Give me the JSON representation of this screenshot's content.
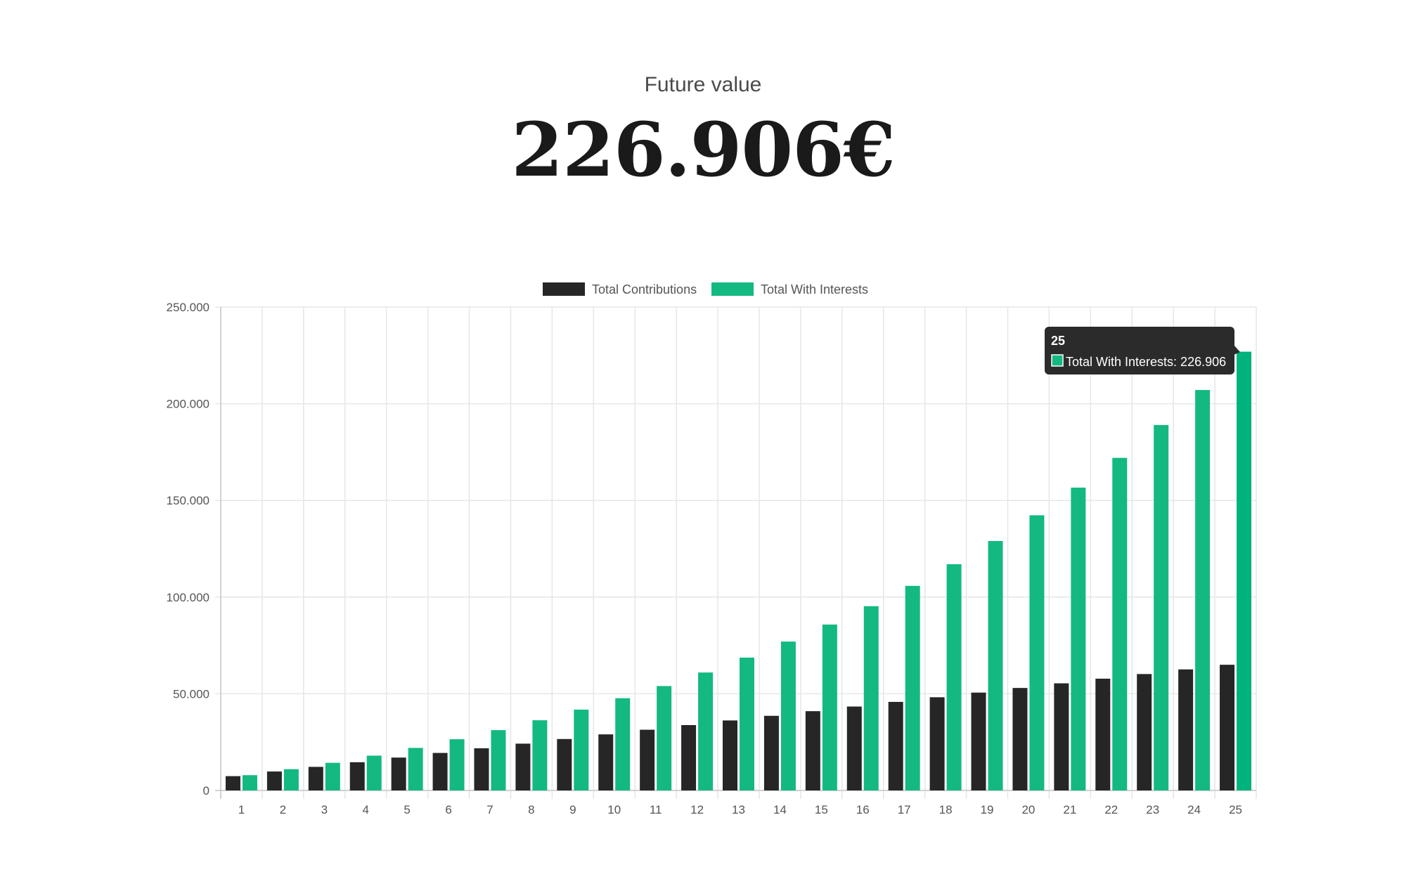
{
  "summary": {
    "label": "Future value",
    "value": "226.906€"
  },
  "colors": {
    "contributions": "#262626",
    "interests": "#13b981",
    "interests_active": "#00b27b",
    "grid": "#e6e6e6",
    "tooltip_bg": "#2b2b2b"
  },
  "tooltip": {
    "title": "25",
    "text": "Total With Interests: 226.906"
  },
  "chart_data": {
    "type": "bar",
    "title": "",
    "xlabel": "",
    "ylabel": "",
    "ylim": [
      0,
      250000
    ],
    "yticks": [
      0,
      50000,
      100000,
      150000,
      200000,
      250000
    ],
    "ytick_labels": [
      "0",
      "50.000",
      "100.000",
      "150.000",
      "200.000",
      "250.000"
    ],
    "grid": true,
    "legend": "top-center",
    "categories": [
      "1",
      "2",
      "3",
      "4",
      "5",
      "6",
      "7",
      "8",
      "9",
      "10",
      "11",
      "12",
      "13",
      "14",
      "15",
      "16",
      "17",
      "18",
      "19",
      "20",
      "21",
      "22",
      "23",
      "24",
      "25"
    ],
    "series": [
      {
        "name": "Total Contributions",
        "values": [
          7400,
          9800,
          12200,
          14600,
          17000,
          19400,
          21800,
          24200,
          26600,
          29000,
          31400,
          33800,
          36200,
          38600,
          41000,
          43400,
          45800,
          48200,
          50600,
          53000,
          55400,
          57800,
          60200,
          62600,
          65000
        ]
      },
      {
        "name": "Total With Interests",
        "values": [
          7900,
          11000,
          14300,
          18000,
          22000,
          26500,
          31200,
          36300,
          41800,
          47700,
          54000,
          61000,
          68700,
          77000,
          85800,
          95300,
          105800,
          117000,
          129000,
          142300,
          156600,
          172000,
          189000,
          207100,
          226906
        ]
      }
    ]
  }
}
